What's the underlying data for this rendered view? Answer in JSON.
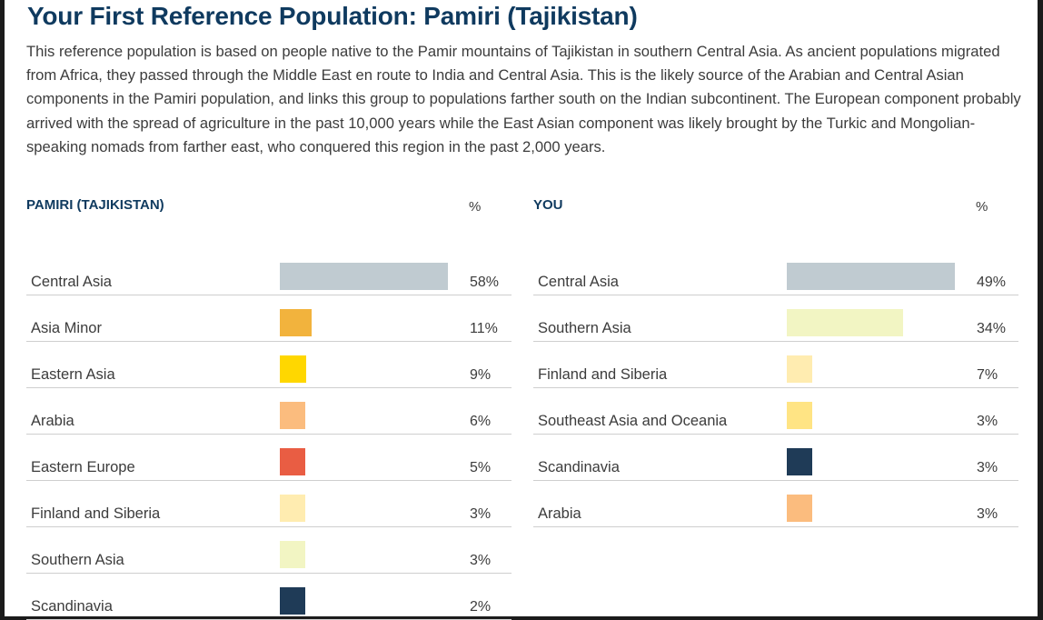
{
  "title": "Your First Reference Population: Pamiri (Tajikistan)",
  "description": "This reference population is based on people native to the Pamir mountains of Tajikistan in southern Central Asia. As ancient populations migrated from Africa, they passed through the Middle East en route to India and Central Asia. This is the likely source of the Arabian and Central Asian components in the Pamiri population, and links this group to populations farther south on the Indian subcontinent. The European component probably arrived with the spread of agriculture in the past 10,000 years while the East Asian component was likely brought by the Turkic and Mongolian-speaking nomads from farther east, who conquered this region in the past 2,000 years.",
  "colors": {
    "Central Asia": "#c0cbd1",
    "Asia Minor": "#f2b33d",
    "Eastern Asia": "#ffd700",
    "Arabia": "#fbbc7e",
    "Eastern Europe": "#e95d43",
    "Finland and Siberia": "#ffecb0",
    "Southern Asia": "#f2f5c3",
    "Scandinavia": "#1f3b57",
    "Southeast Asia and Oceania": "#ffe484"
  },
  "chart_data": [
    {
      "type": "bar",
      "orientation": "horizontal",
      "title": "PAMIRI (TAJIKISTAN)",
      "value_header": "%",
      "categories": [
        "Central Asia",
        "Asia Minor",
        "Eastern Asia",
        "Arabia",
        "Eastern Europe",
        "Finland and Siberia",
        "Southern Asia",
        "Scandinavia"
      ],
      "values": [
        58,
        11,
        9,
        6,
        5,
        3,
        3,
        2
      ],
      "labels": [
        "58%",
        "11%",
        "9%",
        "6%",
        "5%",
        "3%",
        "3%",
        "2%"
      ]
    },
    {
      "type": "bar",
      "orientation": "horizontal",
      "title": "YOU",
      "value_header": "%",
      "categories": [
        "Central Asia",
        "Southern Asia",
        "Finland and Siberia",
        "Southeast Asia and Oceania",
        "Scandinavia",
        "Arabia"
      ],
      "values": [
        49,
        34,
        7,
        3,
        3,
        3
      ],
      "labels": [
        "49%",
        "34%",
        "7%",
        "3%",
        "3%",
        "3%"
      ]
    }
  ]
}
